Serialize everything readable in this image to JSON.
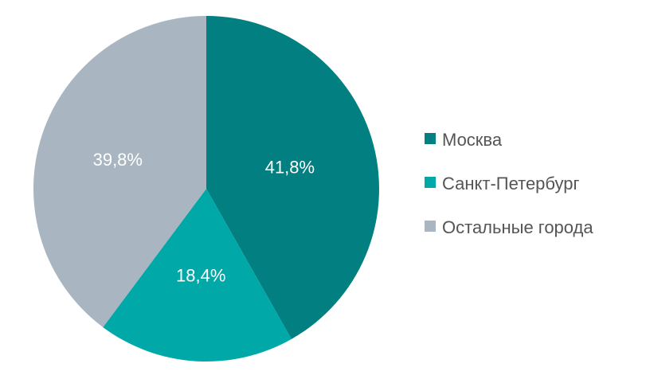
{
  "chart_data": {
    "type": "pie",
    "title": "",
    "categories": [
      "Москва",
      "Санкт-Петербург",
      "Остальные города"
    ],
    "values": [
      41.8,
      18.4,
      39.8
    ],
    "value_labels": [
      "41,8%",
      "18,4%",
      "39,8%"
    ],
    "colors": [
      "#027f80",
      "#00a8a8",
      "#a9b6c1"
    ],
    "start": "12 o'clock",
    "direction": "clockwise",
    "legend_position": "right"
  }
}
